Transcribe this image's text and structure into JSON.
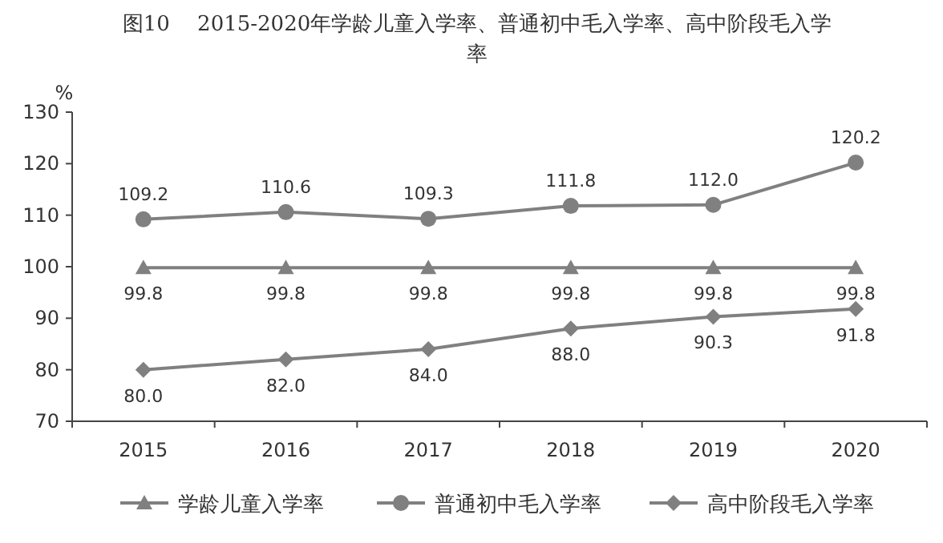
{
  "chart_data": {
    "type": "line",
    "title": "图10　 2015-2020年学龄儿童入学率、普通初中毛入学率、高中阶段毛入学率",
    "ylabel": "%",
    "categories": [
      "2015",
      "2016",
      "2017",
      "2018",
      "2019",
      "2020"
    ],
    "series": [
      {
        "name": "学龄儿童入学率",
        "color": "#808080",
        "marker": "triangle",
        "values": [
          99.8,
          99.8,
          99.8,
          99.8,
          99.8,
          99.8
        ],
        "value_labels": [
          "99.8",
          "99.8",
          "99.8",
          "99.8",
          "99.8",
          "99.8"
        ]
      },
      {
        "name": "普通初中毛入学率",
        "color": "#808080",
        "marker": "circle",
        "values": [
          109.2,
          110.6,
          109.3,
          111.8,
          112.0,
          120.2
        ],
        "value_labels": [
          "109.2",
          "110.6",
          "109.3",
          "111.8",
          "112.0",
          "120.2"
        ]
      },
      {
        "name": "高中阶段毛入学率",
        "color": "#808080",
        "marker": "diamond",
        "values": [
          80.0,
          82.0,
          84.0,
          88.0,
          90.3,
          91.8
        ],
        "value_labels": [
          "80.0",
          "82.0",
          "84.0",
          "88.0",
          "90.3",
          "91.8"
        ]
      }
    ],
    "ylim": [
      70,
      130
    ],
    "yticks": [
      70,
      80,
      90,
      100,
      110,
      120,
      130
    ],
    "grid": false,
    "legend": "bottom",
    "line_style": "solid"
  }
}
